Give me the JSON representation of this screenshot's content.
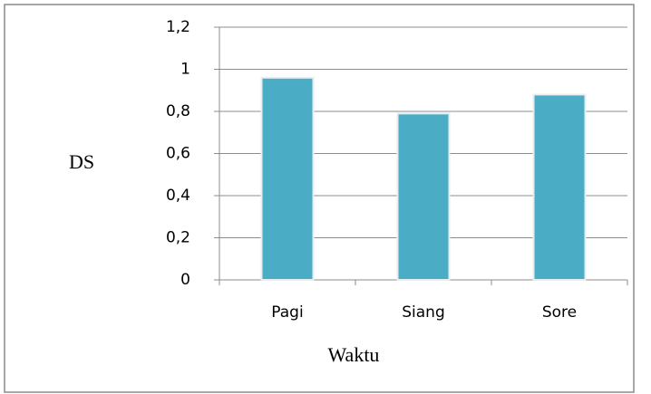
{
  "chart_data": {
    "type": "bar",
    "categories": [
      "Pagi",
      "Siang",
      "Sore"
    ],
    "values": [
      0.96,
      0.79,
      0.88
    ],
    "color": "#4bacc6",
    "ylim": [
      0,
      1.2
    ],
    "yticks": [
      0,
      {
        "value": 0.2,
        "label": "0,2"
      },
      {
        "value": 0.4,
        "label": "0,4"
      },
      {
        "value": 0.6,
        "label": "0,6"
      },
      {
        "value": 0.8,
        "label": "0,8"
      },
      1,
      {
        "value": 1.2,
        "label": "1,2"
      }
    ],
    "grid": true,
    "ylabel": "DS",
    "xlabel": "Waktu"
  }
}
